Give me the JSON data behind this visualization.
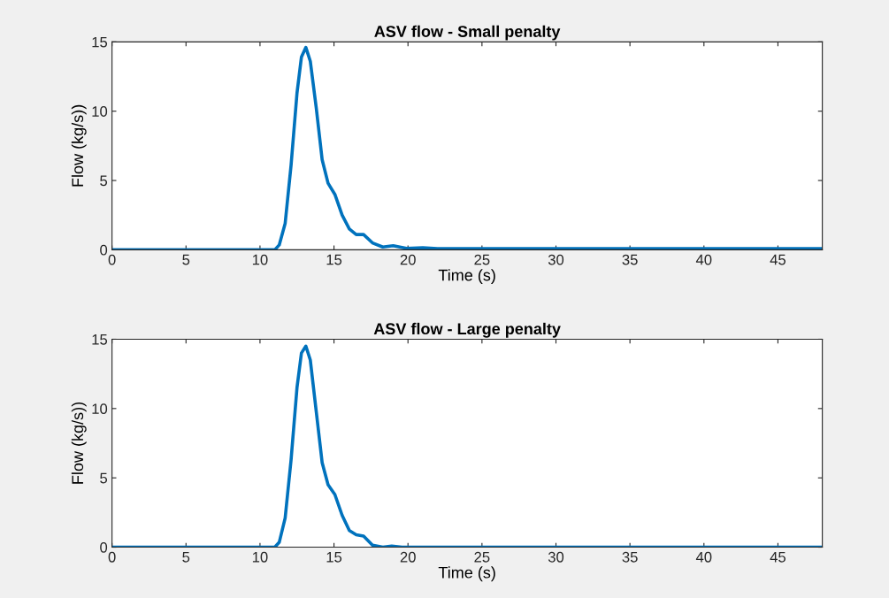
{
  "chart_data": [
    {
      "type": "line",
      "title": "ASV flow - Small penalty",
      "xlabel": "Time (s)",
      "ylabel": "Flow (kg/s))",
      "xlim": [
        0,
        48
      ],
      "ylim": [
        0,
        15
      ],
      "xticks": [
        0,
        5,
        10,
        15,
        20,
        25,
        30,
        35,
        40,
        45
      ],
      "yticks": [
        0,
        5,
        10,
        15
      ],
      "grid": false,
      "series": [
        {
          "color": "#0072bd",
          "x": [
            0,
            10,
            11.0,
            11.3,
            11.7,
            12.1,
            12.5,
            12.8,
            13.1,
            13.4,
            13.8,
            14.2,
            14.6,
            15.06,
            15.55,
            16.04,
            16.5,
            17.0,
            17.6,
            18.3,
            19.0,
            19.9,
            21.0,
            22,
            48
          ],
          "values": [
            0,
            0,
            0,
            0.35,
            1.9,
            6.1,
            11.3,
            13.9,
            14.6,
            13.6,
            10.25,
            6.5,
            4.8,
            4.0,
            2.5,
            1.5,
            1.1,
            1.1,
            0.5,
            0.2,
            0.3,
            0.1,
            0.15,
            0.08,
            0.08
          ]
        }
      ]
    },
    {
      "type": "line",
      "title": "ASV flow - Large penalty",
      "xlabel": "Time (s)",
      "ylabel": "Flow (kg/s))",
      "xlim": [
        0,
        48
      ],
      "ylim": [
        0,
        15
      ],
      "xticks": [
        0,
        5,
        10,
        15,
        20,
        25,
        30,
        35,
        40,
        45
      ],
      "yticks": [
        0,
        5,
        10,
        15
      ],
      "grid": false,
      "series": [
        {
          "color": "#0072bd",
          "x": [
            0,
            10,
            11.0,
            11.3,
            11.7,
            12.1,
            12.5,
            12.8,
            13.1,
            13.4,
            13.8,
            14.2,
            14.6,
            15.06,
            15.55,
            16.04,
            16.5,
            17.0,
            17.6,
            18.3,
            18.9,
            19.6,
            48
          ],
          "values": [
            0,
            0,
            0,
            0.35,
            2.1,
            6.3,
            11.5,
            14.0,
            14.5,
            13.5,
            9.8,
            6.1,
            4.5,
            3.8,
            2.3,
            1.2,
            0.9,
            0.8,
            0.15,
            0,
            0.08,
            0,
            0
          ]
        }
      ]
    }
  ]
}
